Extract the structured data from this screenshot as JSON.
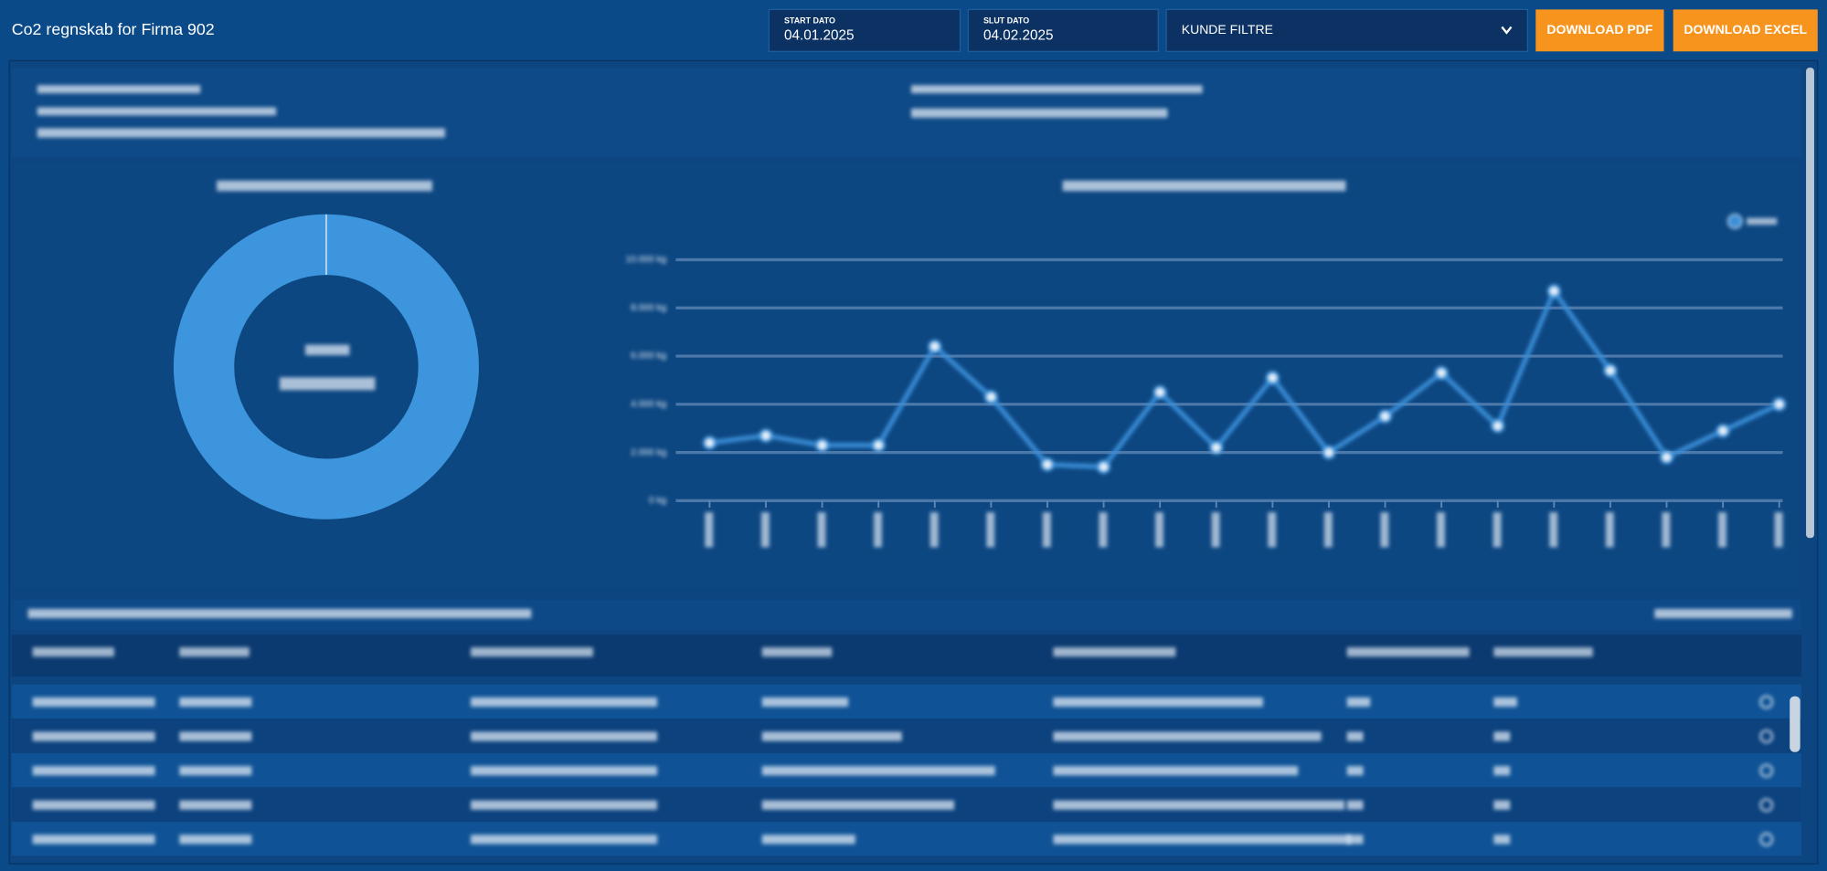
{
  "header": {
    "title": "Co2 regnskab for Firma 902",
    "filters": {
      "start_label": "START DATO",
      "start_value": "04.01.2025",
      "end_label": "SLUT DATO",
      "end_value": "04.02.2025",
      "customer_filter": "KUNDE FILTRE"
    },
    "buttons": [
      "DOWNLOAD PDF",
      "DOWNLOAD EXCEL"
    ]
  },
  "chart_data": [
    {
      "type": "pie",
      "values": [
        100
      ],
      "color": "#3d96dd"
    },
    {
      "type": "line",
      "categories": [
        null,
        null,
        null,
        null,
        null,
        null,
        null,
        null,
        null,
        null,
        null,
        null,
        null,
        null,
        null,
        null,
        null,
        null,
        null,
        null
      ],
      "series": [
        {
          "color": "#3b8fd8",
          "values": [
            2400,
            2700,
            2300,
            2300,
            6400,
            4300,
            1500,
            1400,
            4500,
            2200,
            5100,
            2000,
            3500,
            5300,
            3100,
            8700,
            5400,
            1800,
            2900,
            4000
          ]
        }
      ],
      "ylim": [
        0,
        10000
      ],
      "yticks": [
        {
          "value": 0,
          "label": "0 kg"
        },
        {
          "value": 2000,
          "label": "2.000 kg"
        },
        {
          "value": 4000,
          "label": "4.000 kg"
        },
        {
          "value": 6000,
          "label": "6.000 kg"
        },
        {
          "value": 8000,
          "label": "8.000 kg"
        },
        {
          "value": 10000,
          "label": "10.000 kg"
        }
      ],
      "grid": true
    }
  ]
}
